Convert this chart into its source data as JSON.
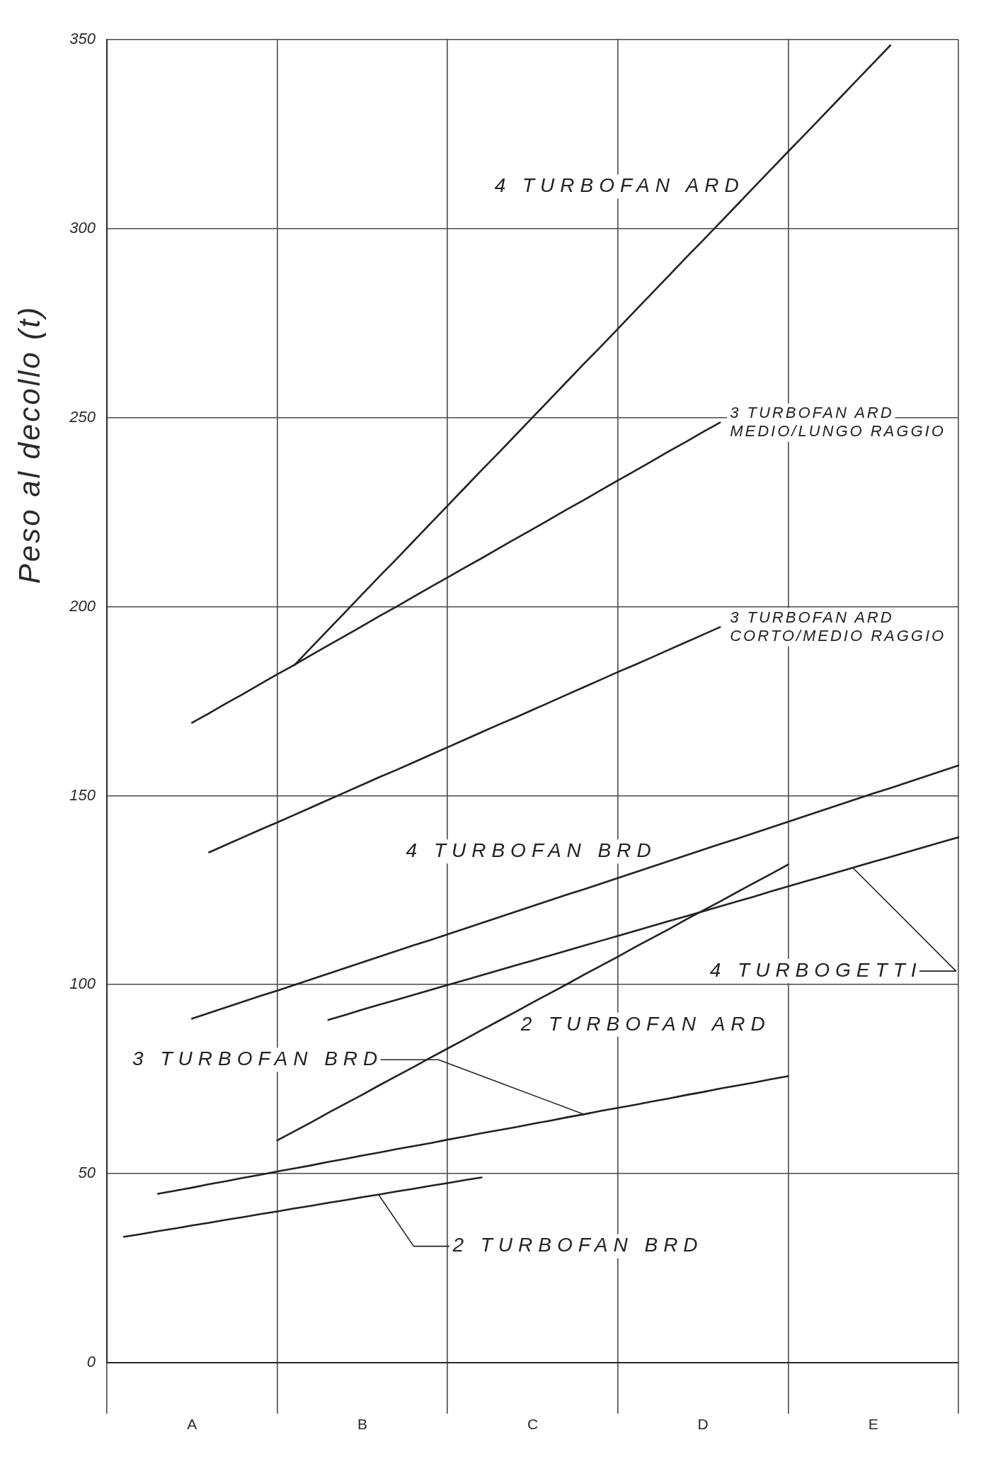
{
  "chart_data": {
    "type": "line",
    "ylabel": "Peso al decollo (t)",
    "categories": [
      null,
      null,
      null,
      null,
      null,
      "A",
      null,
      null,
      null,
      null,
      null,
      null,
      null,
      null,
      null,
      "B",
      null,
      null,
      null,
      null,
      null,
      null,
      null,
      null,
      null,
      "C",
      null,
      null,
      null,
      null,
      null,
      null,
      null,
      null,
      null,
      "D",
      null,
      null,
      null,
      null,
      null,
      null,
      null,
      null,
      null,
      "E",
      null,
      null,
      null,
      null,
      null
    ],
    "ylim": [
      0,
      350
    ],
    "yticks": [
      0,
      50,
      100,
      150,
      200,
      250,
      300,
      350
    ],
    "grid": true,
    "legend": false,
    "marker": "none",
    "line_style": "solid",
    "series": [
      {
        "name": "4 TURBOFAN ARD",
        "color": "#222222",
        "values": [
          null,
          null,
          null,
          null,
          null,
          null,
          null,
          null,
          null,
          null,
          null,
          184.5,
          189.2,
          193.9,
          198.6,
          203.3,
          208.0,
          212.6,
          217.3,
          222.0,
          226.7,
          231.4,
          236.1,
          240.7,
          245.4,
          250.1,
          254.8,
          259.5,
          264.2,
          268.8,
          273.5,
          278.2,
          282.9,
          287.6,
          292.3,
          296.9,
          301.6,
          306.3,
          311.0,
          315.7,
          320.4,
          325.0,
          329.7,
          334.4,
          339.1,
          343.8,
          348.5,
          null,
          null,
          null,
          null
        ]
      },
      {
        "name": "3 TURBOFAN ARD MEDIO/LUNGO RAGGIO",
        "color": "#222222",
        "values": [
          null,
          null,
          null,
          null,
          null,
          169.3,
          171.8,
          174.4,
          176.9,
          179.5,
          182.1,
          184.6,
          187.2,
          189.8,
          192.3,
          194.9,
          197.5,
          200.0,
          202.6,
          205.2,
          207.7,
          210.3,
          212.8,
          215.4,
          218.0,
          220.5,
          223.1,
          225.7,
          228.2,
          230.8,
          233.4,
          235.9,
          238.5,
          241.1,
          243.6,
          246.2,
          248.7,
          null,
          null,
          null,
          null,
          null,
          null,
          null,
          null,
          null,
          null,
          null,
          null,
          null,
          null
        ]
      },
      {
        "name": "3 TURBOFAN ARD CORTO/MEDIO RAGGIO",
        "color": "#222222",
        "values": [
          null,
          null,
          null,
          null,
          null,
          null,
          135.0,
          137.0,
          139.0,
          141.0,
          142.9,
          144.9,
          146.9,
          148.9,
          150.9,
          152.9,
          154.9,
          156.8,
          158.8,
          160.8,
          162.8,
          164.8,
          166.8,
          168.8,
          170.7,
          172.7,
          174.7,
          176.7,
          178.7,
          180.7,
          182.7,
          184.6,
          186.6,
          188.6,
          190.6,
          192.6,
          194.6,
          null,
          null,
          null,
          null,
          null,
          null,
          null,
          null,
          null,
          null,
          null,
          null,
          null,
          null
        ]
      },
      {
        "name": "4 TURBOFAN BRD",
        "color": "#222222",
        "values": [
          null,
          null,
          null,
          null,
          null,
          91.0,
          92.5,
          94.0,
          95.5,
          97.0,
          98.4,
          99.9,
          101.4,
          102.9,
          104.4,
          105.9,
          107.4,
          108.9,
          110.4,
          111.8,
          113.3,
          114.8,
          116.3,
          117.8,
          119.3,
          120.8,
          122.3,
          123.8,
          125.2,
          126.7,
          128.2,
          129.7,
          131.2,
          132.7,
          134.2,
          135.7,
          137.2,
          138.6,
          140.1,
          141.6,
          143.1,
          144.6,
          146.1,
          147.6,
          149.1,
          150.6,
          152.0,
          153.5,
          155.0,
          156.5,
          158.0
        ]
      },
      {
        "name": "4 TURBOGETTI",
        "color": "#222222",
        "values": [
          null,
          null,
          null,
          null,
          null,
          null,
          null,
          null,
          null,
          null,
          null,
          null,
          null,
          90.7,
          92.0,
          93.4,
          94.7,
          96.0,
          97.3,
          98.6,
          99.9,
          101.2,
          102.5,
          103.8,
          105.1,
          106.4,
          107.7,
          109.0,
          110.3,
          111.6,
          112.9,
          114.2,
          115.5,
          116.8,
          118.1,
          119.4,
          120.7,
          122.0,
          123.3,
          124.7,
          126.0,
          127.3,
          128.6,
          129.9,
          131.2,
          132.5,
          133.8,
          135.1,
          136.4,
          137.7,
          139.0
        ]
      },
      {
        "name": "2 TURBOFAN ARD",
        "color": "#222222",
        "values": [
          null,
          null,
          null,
          null,
          null,
          null,
          null,
          null,
          null,
          null,
          58.8,
          61.2,
          63.6,
          66.1,
          68.5,
          70.9,
          73.4,
          75.8,
          78.2,
          80.7,
          83.1,
          85.5,
          88.0,
          90.4,
          92.8,
          95.3,
          97.7,
          100.1,
          102.6,
          105.0,
          107.4,
          109.9,
          112.3,
          114.7,
          117.2,
          119.6,
          122.0,
          124.5,
          126.9,
          129.3,
          131.8,
          null,
          null,
          null,
          null,
          null,
          null,
          null,
          null,
          null,
          null
        ]
      },
      {
        "name": "3 TURBOFAN BRD",
        "color": "#222222",
        "values": [
          null,
          null,
          null,
          44.7,
          45.5,
          46.3,
          47.2,
          48.0,
          48.9,
          49.7,
          50.6,
          51.4,
          52.2,
          53.1,
          53.9,
          54.8,
          55.6,
          56.5,
          57.3,
          58.1,
          59.0,
          59.8,
          60.7,
          61.5,
          62.3,
          63.2,
          64.0,
          64.9,
          65.7,
          66.6,
          67.4,
          68.2,
          69.1,
          69.9,
          70.8,
          71.6,
          72.5,
          73.3,
          74.1,
          75.0,
          75.8,
          null,
          null,
          null,
          null,
          null,
          null,
          null,
          null,
          null,
          null
        ]
      },
      {
        "name": "2 TURBOFAN BRD",
        "color": "#222222",
        "values": [
          null,
          33.3,
          34.0,
          34.8,
          35.5,
          36.3,
          37.0,
          37.8,
          38.5,
          39.3,
          40.0,
          40.8,
          41.5,
          42.3,
          43.0,
          43.8,
          44.5,
          45.3,
          46.0,
          46.8,
          47.5,
          48.3,
          49.0,
          null,
          null,
          null,
          null,
          null,
          null,
          null,
          null,
          null,
          null,
          null,
          null,
          null,
          null,
          null,
          null,
          null,
          null,
          null,
          null,
          null,
          null,
          null,
          null,
          null,
          null,
          null,
          null
        ]
      }
    ]
  }
}
